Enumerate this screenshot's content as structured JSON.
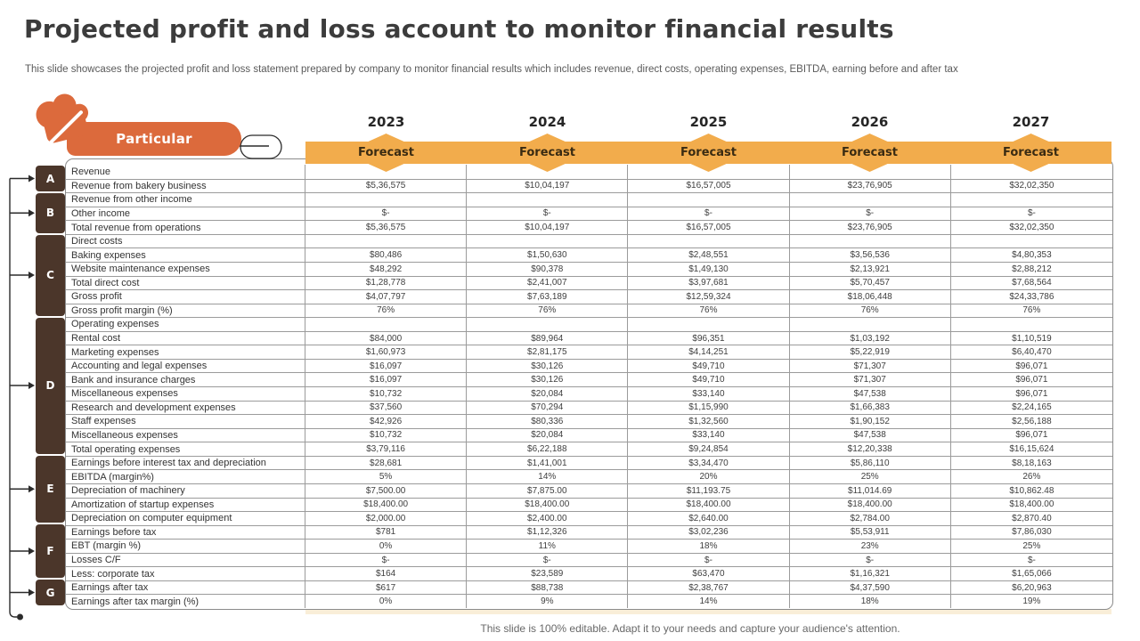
{
  "slide": {
    "title": "Projected profit and loss account to monitor financial results",
    "subtitle": "This slide showcases the projected profit and loss statement prepared by company to monitor financial results which includes revenue, direct costs, operating expenses, EBITDA, earning before and after tax",
    "footer": "This slide is 100% editable. Adapt it to your needs and capture your audience's attention."
  },
  "colors": {
    "orange": "#DC6A3C",
    "amber": "#F2AC4C",
    "brown": "#4B362A",
    "border_gray": "#9b9b9b",
    "cream": "#F9EED8"
  },
  "table": {
    "particular_label": "Particular",
    "forecast_label": "Forecast",
    "years": [
      "2023",
      "2024",
      "2025",
      "2026",
      "2027"
    ],
    "sections": [
      {
        "letter": "A",
        "rows": [
          {
            "label": "Revenue",
            "values": [
              "",
              "",
              "",
              "",
              ""
            ]
          },
          {
            "label": "Revenue from bakery business",
            "values": [
              "$5,36,575",
              "$10,04,197",
              "$16,57,005",
              "$23,76,905",
              "$32,02,350"
            ]
          }
        ]
      },
      {
        "letter": "B",
        "rows": [
          {
            "label": "Revenue from other income",
            "values": [
              "",
              "",
              "",
              "",
              ""
            ]
          },
          {
            "label": "Other income",
            "values": [
              "$-",
              "$-",
              "$-",
              "$-",
              "$-"
            ]
          },
          {
            "label": "Total revenue from operations",
            "values": [
              "$5,36,575",
              "$10,04,197",
              "$16,57,005",
              "$23,76,905",
              "$32,02,350"
            ]
          }
        ]
      },
      {
        "letter": "C",
        "rows": [
          {
            "label": "Direct costs",
            "values": [
              "",
              "",
              "",
              "",
              ""
            ]
          },
          {
            "label": "Baking expenses",
            "values": [
              "$80,486",
              "$1,50,630",
              "$2,48,551",
              "$3,56,536",
              "$4,80,353"
            ]
          },
          {
            "label": "Website maintenance expenses",
            "values": [
              "$48,292",
              "$90,378",
              "$1,49,130",
              "$2,13,921",
              "$2,88,212"
            ]
          },
          {
            "label": "Total direct cost",
            "values": [
              "$1,28,778",
              "$2,41,007",
              "$3,97,681",
              "$5,70,457",
              "$7,68,564"
            ]
          },
          {
            "label": "Gross profit",
            "values": [
              "$4,07,797",
              "$7,63,189",
              "$12,59,324",
              "$18,06,448",
              "$24,33,786"
            ]
          },
          {
            "label": "Gross profit margin (%)",
            "values": [
              "76%",
              "76%",
              "76%",
              "76%",
              "76%"
            ]
          }
        ]
      },
      {
        "letter": "D",
        "rows": [
          {
            "label": "Operating expenses",
            "values": [
              "",
              "",
              "",
              "",
              ""
            ]
          },
          {
            "label": "Rental cost",
            "values": [
              "$84,000",
              "$89,964",
              "$96,351",
              "$1,03,192",
              "$1,10,519"
            ]
          },
          {
            "label": "Marketing expenses",
            "values": [
              "$1,60,973",
              "$2,81,175",
              "$4,14,251",
              "$5,22,919",
              "$6,40,470"
            ]
          },
          {
            "label": "Accounting and legal expenses",
            "values": [
              "$16,097",
              "$30,126",
              "$49,710",
              "$71,307",
              "$96,071"
            ]
          },
          {
            "label": "Bank and insurance charges",
            "values": [
              "$16,097",
              "$30,126",
              "$49,710",
              "$71,307",
              "$96,071"
            ]
          },
          {
            "label": "Miscellaneous expenses",
            "values": [
              "$10,732",
              "$20,084",
              "$33,140",
              "$47,538",
              "$96,071"
            ]
          },
          {
            "label": "Research and development expenses",
            "values": [
              "$37,560",
              "$70,294",
              "$1,15,990",
              "$1,66,383",
              "$2,24,165"
            ]
          },
          {
            "label": "Staff expenses",
            "values": [
              "$42,926",
              "$80,336",
              "$1,32,560",
              "$1,90,152",
              "$2,56,188"
            ]
          },
          {
            "label": "Miscellaneous expenses",
            "values": [
              "$10,732",
              "$20,084",
              "$33,140",
              "$47,538",
              "$96,071"
            ]
          },
          {
            "label": "Total operating expenses",
            "values": [
              "$3,79,116",
              "$6,22,188",
              "$9,24,854",
              "$12,20,338",
              "$16,15,624"
            ]
          }
        ]
      },
      {
        "letter": "E",
        "rows": [
          {
            "label": "Earnings before interest tax and depreciation",
            "values": [
              "$28,681",
              "$1,41,001",
              "$3,34,470",
              "$5,86,110",
              "$8,18,163"
            ]
          },
          {
            "label": "EBITDA (margin%)",
            "values": [
              "5%",
              "14%",
              "20%",
              "25%",
              "26%"
            ]
          },
          {
            "label": "Depreciation of machinery",
            "values": [
              "$7,500.00",
              "$7,875.00",
              "$11,193.75",
              "$11,014.69",
              "$10,862.48"
            ]
          },
          {
            "label": "Amortization of startup expenses",
            "values": [
              "$18,400.00",
              "$18,400.00",
              "$18,400.00",
              "$18,400.00",
              "$18,400.00"
            ]
          },
          {
            "label": "Depreciation on computer equipment",
            "values": [
              "$2,000.00",
              "$2,400.00",
              "$2,640.00",
              "$2,784.00",
              "$2,870.40"
            ]
          }
        ]
      },
      {
        "letter": "F",
        "rows": [
          {
            "label": "Earnings before tax",
            "values": [
              "$781",
              "$1,12,326",
              "$3,02,236",
              "$5,53,911",
              "$7,86,030"
            ]
          },
          {
            "label": "EBT (margin %)",
            "values": [
              "0%",
              "11%",
              "18%",
              "23%",
              "25%"
            ]
          },
          {
            "label": "Losses C/F",
            "values": [
              "$-",
              "$-",
              "$-",
              "$-",
              "$-"
            ]
          },
          {
            "label": "Less: corporate tax",
            "values": [
              "$164",
              "$23,589",
              "$63,470",
              "$1,16,321",
              "$1,65,066"
            ]
          }
        ]
      },
      {
        "letter": "G",
        "rows": [
          {
            "label": "Earnings after tax",
            "values": [
              "$617",
              "$88,738",
              "$2,38,767",
              "$4,37,590",
              "$6,20,963"
            ]
          },
          {
            "label": "Earnings after tax margin (%)",
            "values": [
              "0%",
              "9%",
              "14%",
              "18%",
              "19%"
            ]
          }
        ]
      }
    ]
  }
}
